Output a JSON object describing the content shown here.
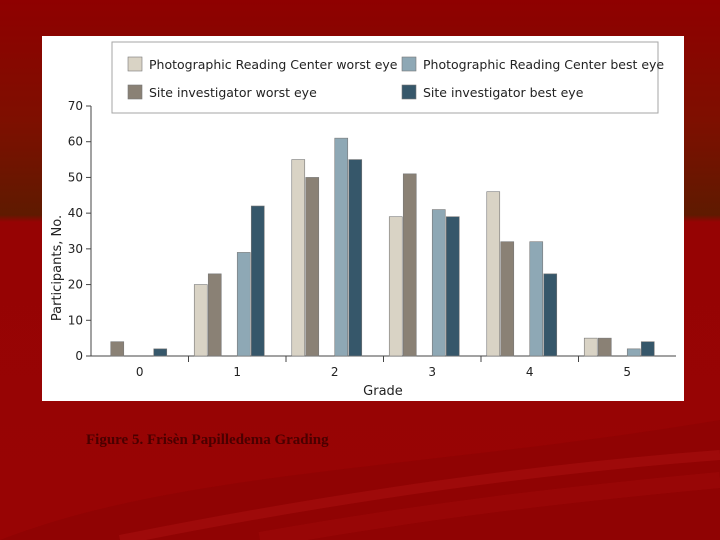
{
  "caption": "Figure 5. Frisèn Papilledema Grading",
  "chart_data": {
    "type": "bar",
    "title": "",
    "xlabel": "Grade",
    "ylabel": "Participants, No.",
    "ylim": [
      0,
      70
    ],
    "yticks": [
      "0",
      "10",
      "20",
      "30",
      "40",
      "50",
      "60",
      "70"
    ],
    "categories": [
      "0",
      "1",
      "2",
      "3",
      "4",
      "5"
    ],
    "grid": false,
    "legend_position": "top",
    "series": [
      {
        "name": "Photographic Reading Center worst eye",
        "color": "#d9d3c5",
        "values": [
          0,
          20,
          55,
          39,
          46,
          5
        ]
      },
      {
        "name": "Site investigator worst eye",
        "color": "#8a8175",
        "values": [
          4,
          23,
          50,
          51,
          32,
          5
        ]
      },
      {
        "name": "Photographic Reading Center best eye",
        "color": "#8ea8b5",
        "values": [
          0,
          29,
          61,
          41,
          32,
          2
        ]
      },
      {
        "name": "Site investigator best eye",
        "color": "#36576a",
        "values": [
          2,
          42,
          55,
          39,
          23,
          4
        ]
      }
    ]
  },
  "legend": {
    "items": [
      {
        "label": "Photographic Reading Center worst eye",
        "color": "#d9d3c5"
      },
      {
        "label": "Photographic Reading Center best eye",
        "color": "#8ea8b5"
      },
      {
        "label": "Site investigator worst eye",
        "color": "#8a8175"
      },
      {
        "label": "Site investigator best eye",
        "color": "#36576a"
      }
    ]
  }
}
